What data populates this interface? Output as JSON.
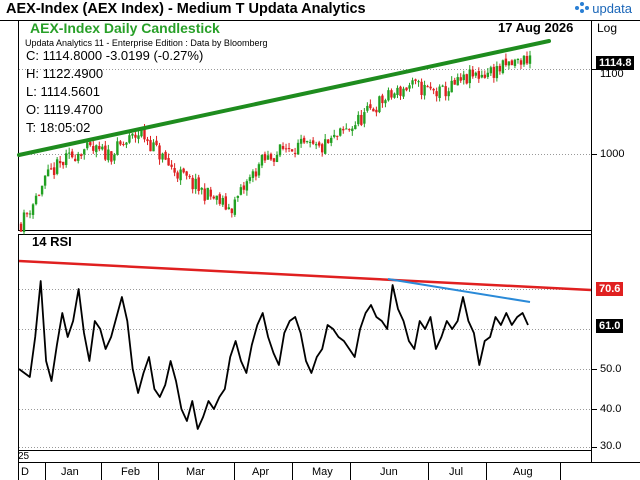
{
  "window": {
    "title": "AEX-Index (AEX Index) - Medium T  Updata Analytics",
    "brand": "updata"
  },
  "price_panel": {
    "name": "AEX-Index Daily Candlestick",
    "date": "17 Aug 2026",
    "scale": "Log",
    "subtitle": "Updata Analytics 11 - Enterprise Edition : Data by Bloomberg",
    "ohlc": {
      "close": "C: 1114.8000  -3.0199 (-0.27%)",
      "high": "H: 1122.4900",
      "low": "L: 1114.5601",
      "open": "O: 1119.4700",
      "time": "T: 18:05:02"
    },
    "y_labels": [
      "1100",
      "1000"
    ],
    "last_price_tag": "1114.8"
  },
  "rsi_panel": {
    "title": "14 RSI",
    "y_labels": [
      "50.0",
      "40.0",
      "30.0"
    ],
    "upper_tag": "70.6",
    "last_tag": "61.0"
  },
  "x_axis": {
    "year": "25",
    "start_mark": "D",
    "months": [
      "Jan",
      "Feb",
      "Mar",
      "Apr",
      "May",
      "Jun",
      "Jul",
      "Aug"
    ]
  },
  "colors": {
    "trend_green": "#1e8c1e",
    "rsi_red": "#e02020",
    "rsi_blue": "#2a8ad8",
    "candle_up": "#22a022",
    "candle_down": "#dd2020",
    "tag_bg": "#000000"
  },
  "chart_data": [
    {
      "type": "candlestick",
      "title": "AEX-Index Daily Candlestick",
      "scale": "log",
      "ylim": [
        920,
        1150
      ],
      "y_ticks": [
        1000,
        1100
      ],
      "x_ticks": [
        "Jan",
        "Feb",
        "Mar",
        "Apr",
        "May",
        "Jun",
        "Jul",
        "Aug"
      ],
      "close_path": [
        [
          "Dec",
          925
        ],
        [
          "Jan",
          980
        ],
        [
          "Jan",
          1005
        ],
        [
          "Feb",
          1000
        ],
        [
          "Feb",
          1025
        ],
        [
          "Mar",
          985
        ],
        [
          "Mar",
          960
        ],
        [
          "Mar",
          940
        ],
        [
          "Apr",
          990
        ],
        [
          "Apr",
          1010
        ],
        [
          "May",
          1005
        ],
        [
          "May",
          1030
        ],
        [
          "Jun",
          1060
        ],
        [
          "Jun",
          1080
        ],
        [
          "Jul",
          1070
        ],
        [
          "Jul",
          1090
        ],
        [
          "Aug",
          1100
        ],
        [
          "Aug",
          1114.8
        ]
      ],
      "last": {
        "open": 1119.47,
        "high": 1122.49,
        "low": 1114.5601,
        "close": 1114.8,
        "change": -3.0199,
        "change_pct": -0.27
      },
      "trendline": {
        "from": 1000,
        "to": 1155
      }
    },
    {
      "type": "line",
      "title": "14 RSI",
      "ylim": [
        30,
        78
      ],
      "y_ticks": [
        30,
        40,
        50
      ],
      "x_ticks": [
        "Jan",
        "Feb",
        "Mar",
        "Apr",
        "May",
        "Jun",
        "Jul",
        "Aug"
      ],
      "values": [
        50,
        49,
        48,
        58,
        72,
        52,
        47,
        56,
        64,
        58,
        62,
        70,
        59,
        52,
        62,
        60,
        55,
        58,
        63,
        68,
        62,
        50,
        44,
        49,
        53,
        45,
        43,
        46,
        52,
        47,
        40,
        37,
        42,
        35,
        38,
        42,
        40,
        43,
        45,
        53,
        57,
        52,
        49,
        56,
        61,
        64,
        58,
        54,
        51,
        59,
        62,
        63,
        59,
        52,
        49,
        53,
        55,
        61,
        60,
        58,
        57,
        55,
        53,
        60,
        64,
        66,
        63,
        62,
        60,
        71,
        65,
        62,
        57,
        55,
        62,
        60,
        63,
        55,
        58,
        62,
        60,
        62,
        68,
        62,
        59,
        51,
        57,
        58,
        63,
        61,
        64,
        61,
        63,
        64,
        61
      ],
      "upper_line": {
        "from": 74,
        "to": 70.6
      },
      "blue_line": {
        "from": 72,
        "to": 66
      }
    }
  ]
}
